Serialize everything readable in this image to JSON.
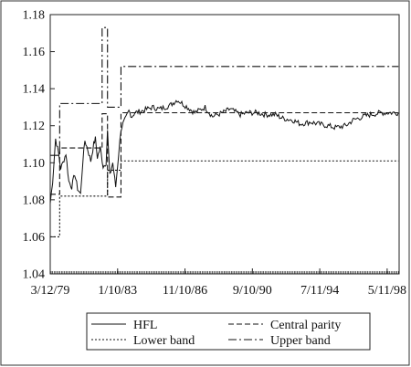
{
  "chart_data": {
    "type": "line",
    "title": "",
    "xlabel": "",
    "ylabel": "",
    "ylim": [
      1.04,
      1.18
    ],
    "yticks": [
      "1.04",
      "1.06",
      "1.08",
      "1.10",
      "1.12",
      "1.14",
      "1.16",
      "1.18"
    ],
    "xticks": [
      "3/12/79",
      "1/10/83",
      "11/10/86",
      "9/10/90",
      "7/11/94",
      "5/11/98"
    ],
    "xlim": [
      "1979-03-12",
      "1999-01-15"
    ],
    "grid": false,
    "legend_position": "bottom",
    "legend_order": [
      "HFL",
      "Central parity",
      "Lower band",
      "Upper band"
    ],
    "series": [
      {
        "name": "HFL",
        "style": "solid",
        "x": [
          "1979-03-12",
          "1979-05-01",
          "1979-07-01",
          "1979-09-01",
          "1979-10-15",
          "1979-12-01",
          "1980-02-01",
          "1980-04-01",
          "1980-06-01",
          "1980-08-01",
          "1980-10-01",
          "1980-12-01",
          "1981-01-15",
          "1981-03-01",
          "1981-05-01",
          "1981-07-01",
          "1981-09-01",
          "1981-10-05",
          "1981-11-15",
          "1982-01-15",
          "1982-03-15",
          "1982-05-15",
          "1982-06-14",
          "1982-08-01",
          "1982-10-01",
          "1982-12-01",
          "1983-02-01",
          "1983-03-21",
          "1983-05-01",
          "1983-07-01",
          "1983-09-01",
          "1983-11-01",
          "1984-01-01",
          "1984-06-01",
          "1985-01-01",
          "1985-06-01",
          "1986-01-01",
          "1986-06-01",
          "1987-01-01",
          "1987-06-01",
          "1988-01-01",
          "1988-06-01",
          "1989-01-01",
          "1989-06-01",
          "1990-01-01",
          "1990-06-01",
          "1991-01-01",
          "1991-06-01",
          "1992-01-01",
          "1992-06-01",
          "1993-01-01",
          "1993-06-01",
          "1994-01-01",
          "1994-06-01",
          "1995-01-01",
          "1995-06-01",
          "1996-01-01",
          "1996-06-01",
          "1997-01-01",
          "1997-06-01",
          "1998-01-01",
          "1998-06-01",
          "1998-12-31"
        ],
        "y": [
          1.078,
          1.09,
          1.113,
          1.105,
          1.097,
          1.1,
          1.105,
          1.09,
          1.087,
          1.094,
          1.086,
          1.083,
          1.1,
          1.112,
          1.107,
          1.101,
          1.11,
          1.113,
          1.103,
          1.108,
          1.098,
          1.1,
          1.117,
          1.093,
          1.1,
          1.087,
          1.105,
          1.118,
          1.121,
          1.124,
          1.128,
          1.125,
          1.127,
          1.128,
          1.13,
          1.129,
          1.131,
          1.134,
          1.13,
          1.127,
          1.13,
          1.125,
          1.127,
          1.129,
          1.126,
          1.127,
          1.127,
          1.126,
          1.126,
          1.124,
          1.123,
          1.121,
          1.122,
          1.121,
          1.12,
          1.119,
          1.12,
          1.123,
          1.125,
          1.126,
          1.127,
          1.127,
          1.127
        ]
      },
      {
        "name": "Central parity",
        "style": "dashed",
        "x": [
          "1979-03-12",
          "1979-09-24",
          "1981-10-05",
          "1982-02-22",
          "1982-06-14",
          "1982-10-01",
          "1983-03-21",
          "1998-12-31"
        ],
        "y": [
          1.083,
          1.108,
          1.108,
          1.1265,
          1.0815,
          1.0815,
          1.127,
          1.127
        ]
      },
      {
        "name": "Lower band",
        "style": "dotted",
        "x": [
          "1979-03-12",
          "1979-09-24",
          "1981-10-05",
          "1982-06-14",
          "1983-03-21",
          "1998-12-31"
        ],
        "y": [
          1.06,
          1.082,
          1.082,
          1.096,
          1.101,
          1.101
        ]
      },
      {
        "name": "Upper band",
        "style": "dash-dot",
        "x": [
          "1979-03-12",
          "1979-09-24",
          "1981-10-05",
          "1982-02-22",
          "1982-06-14",
          "1982-10-01",
          "1983-03-21",
          "1998-12-31"
        ],
        "y": [
          1.104,
          1.132,
          1.132,
          1.173,
          1.13,
          1.13,
          1.152,
          1.152
        ]
      }
    ]
  }
}
